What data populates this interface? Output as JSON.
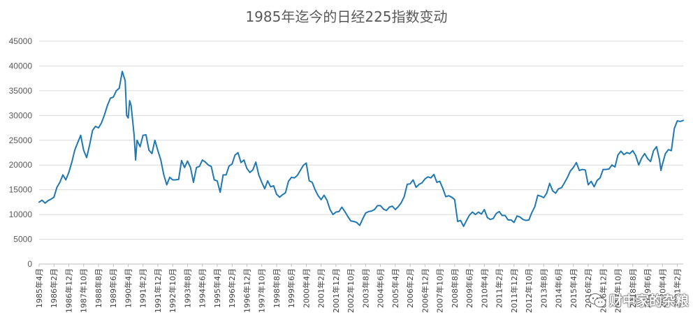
{
  "chart_data": {
    "type": "line",
    "title": "1985年迄今的日经225指数变动",
    "xlabel": "",
    "ylabel": "",
    "ylim": [
      0,
      45000
    ],
    "yticks": [
      0,
      5000,
      10000,
      15000,
      20000,
      25000,
      30000,
      35000,
      40000,
      45000
    ],
    "xlim": [
      "1985-04",
      "2021-06"
    ],
    "grid": true,
    "legend": "none",
    "x_tick_labels": [
      "1985年4月",
      "1986年2月",
      "1986年12月",
      "1987年10月",
      "1988年8月",
      "1989年6月",
      "1990年4月",
      "1991年2月",
      "1991年12月",
      "1992年10月",
      "1993年8月",
      "1994年6月",
      "1995年4月",
      "1996年2月",
      "1996年12月",
      "1997年10月",
      "1998年8月",
      "1999年6月",
      "2000年4月",
      "2001年2月",
      "2001年12月",
      "2002年10月",
      "2003年8月",
      "2004年6月",
      "2005年4月",
      "2006年2月",
      "2006年12月",
      "2007年10月",
      "2008年8月",
      "2009年6月",
      "2010年4月",
      "2011年2月",
      "2011年12月",
      "2012年10月",
      "2013年8月",
      "2014年6月",
      "2015年4月",
      "2016年2月",
      "2016年12月",
      "2017年10月",
      "2018年8月",
      "2019年6月",
      "2020年4月",
      "2021年2月"
    ],
    "series": [
      {
        "name": "",
        "color": "#1f77b4",
        "points": [
          [
            "1985-04",
            12500
          ],
          [
            "1985-06",
            12900
          ],
          [
            "1985-08",
            12300
          ],
          [
            "1985-10",
            12800
          ],
          [
            "1985-12",
            13100
          ],
          [
            "1986-02",
            13500
          ],
          [
            "1986-04",
            15500
          ],
          [
            "1986-06",
            16500
          ],
          [
            "1986-08",
            18000
          ],
          [
            "1986-10",
            17000
          ],
          [
            "1986-12",
            18500
          ],
          [
            "1987-02",
            20500
          ],
          [
            "1987-04",
            23000
          ],
          [
            "1987-06",
            24500
          ],
          [
            "1987-08",
            26000
          ],
          [
            "1987-10",
            23000
          ],
          [
            "1987-12",
            21500
          ],
          [
            "1988-02",
            24000
          ],
          [
            "1988-04",
            27000
          ],
          [
            "1988-06",
            27800
          ],
          [
            "1988-08",
            27500
          ],
          [
            "1988-10",
            28500
          ],
          [
            "1988-12",
            30100
          ],
          [
            "1989-02",
            32000
          ],
          [
            "1989-04",
            33500
          ],
          [
            "1989-06",
            33700
          ],
          [
            "1989-08",
            35000
          ],
          [
            "1989-10",
            35500
          ],
          [
            "1989-12",
            38900
          ],
          [
            "1990-02",
            37000
          ],
          [
            "1990-03",
            30000
          ],
          [
            "1990-04",
            29500
          ],
          [
            "1990-05",
            33000
          ],
          [
            "1990-06",
            32000
          ],
          [
            "1990-08",
            26000
          ],
          [
            "1990-09",
            21000
          ],
          [
            "1990-10",
            25000
          ],
          [
            "1990-12",
            23700
          ],
          [
            "1991-02",
            26000
          ],
          [
            "1991-04",
            26100
          ],
          [
            "1991-06",
            23000
          ],
          [
            "1991-08",
            22300
          ],
          [
            "1991-10",
            25000
          ],
          [
            "1991-12",
            22900
          ],
          [
            "1992-02",
            21000
          ],
          [
            "1992-04",
            18000
          ],
          [
            "1992-06",
            16000
          ],
          [
            "1992-08",
            17500
          ],
          [
            "1992-10",
            17000
          ],
          [
            "1992-12",
            17000
          ],
          [
            "1993-02",
            17100
          ],
          [
            "1993-04",
            20900
          ],
          [
            "1993-06",
            19500
          ],
          [
            "1993-08",
            20800
          ],
          [
            "1993-10",
            19500
          ],
          [
            "1993-12",
            16500
          ],
          [
            "1994-02",
            19500
          ],
          [
            "1994-04",
            19700
          ],
          [
            "1994-06",
            21000
          ],
          [
            "1994-08",
            20600
          ],
          [
            "1994-10",
            20000
          ],
          [
            "1994-12",
            19700
          ],
          [
            "1995-02",
            17000
          ],
          [
            "1995-04",
            16800
          ],
          [
            "1995-06",
            14500
          ],
          [
            "1995-08",
            18000
          ],
          [
            "1995-10",
            18000
          ],
          [
            "1995-12",
            19800
          ],
          [
            "1996-02",
            20200
          ],
          [
            "1996-04",
            22000
          ],
          [
            "1996-06",
            22500
          ],
          [
            "1996-08",
            20500
          ],
          [
            "1996-10",
            21000
          ],
          [
            "1996-12",
            19300
          ],
          [
            "1997-02",
            18500
          ],
          [
            "1997-04",
            19000
          ],
          [
            "1997-06",
            20600
          ],
          [
            "1997-08",
            18000
          ],
          [
            "1997-10",
            16500
          ],
          [
            "1997-12",
            15200
          ],
          [
            "1998-02",
            16800
          ],
          [
            "1998-04",
            15600
          ],
          [
            "1998-06",
            15800
          ],
          [
            "1998-08",
            14100
          ],
          [
            "1998-10",
            13500
          ],
          [
            "1998-12",
            14000
          ],
          [
            "1999-02",
            14400
          ],
          [
            "1999-04",
            16700
          ],
          [
            "1999-06",
            17500
          ],
          [
            "1999-08",
            17400
          ],
          [
            "1999-10",
            17900
          ],
          [
            "1999-12",
            18900
          ],
          [
            "2000-02",
            19900
          ],
          [
            "2000-04",
            20400
          ],
          [
            "2000-06",
            16800
          ],
          [
            "2000-08",
            16500
          ],
          [
            "2000-10",
            15000
          ],
          [
            "2000-12",
            13800
          ],
          [
            "2001-02",
            13000
          ],
          [
            "2001-04",
            13900
          ],
          [
            "2001-06",
            12900
          ],
          [
            "2001-08",
            11000
          ],
          [
            "2001-10",
            10000
          ],
          [
            "2001-12",
            10500
          ],
          [
            "2002-02",
            10600
          ],
          [
            "2002-04",
            11500
          ],
          [
            "2002-06",
            10600
          ],
          [
            "2002-08",
            9600
          ],
          [
            "2002-10",
            8700
          ],
          [
            "2002-12",
            8600
          ],
          [
            "2003-02",
            8400
          ],
          [
            "2003-04",
            7800
          ],
          [
            "2003-06",
            9100
          ],
          [
            "2003-08",
            10300
          ],
          [
            "2003-10",
            10600
          ],
          [
            "2003-12",
            10700
          ],
          [
            "2004-02",
            11000
          ],
          [
            "2004-04",
            11800
          ],
          [
            "2004-06",
            11800
          ],
          [
            "2004-08",
            11100
          ],
          [
            "2004-10",
            10800
          ],
          [
            "2004-12",
            11500
          ],
          [
            "2005-02",
            11700
          ],
          [
            "2005-04",
            11000
          ],
          [
            "2005-06",
            11600
          ],
          [
            "2005-08",
            12400
          ],
          [
            "2005-10",
            13600
          ],
          [
            "2005-12",
            16100
          ],
          [
            "2006-02",
            16200
          ],
          [
            "2006-04",
            17000
          ],
          [
            "2006-06",
            15500
          ],
          [
            "2006-08",
            16100
          ],
          [
            "2006-10",
            16400
          ],
          [
            "2006-12",
            17200
          ],
          [
            "2007-02",
            17600
          ],
          [
            "2007-04",
            17400
          ],
          [
            "2007-06",
            18100
          ],
          [
            "2007-08",
            16500
          ],
          [
            "2007-10",
            16700
          ],
          [
            "2007-12",
            15300
          ],
          [
            "2008-02",
            13600
          ],
          [
            "2008-04",
            13800
          ],
          [
            "2008-06",
            13500
          ],
          [
            "2008-08",
            13000
          ],
          [
            "2008-10",
            8600
          ],
          [
            "2008-12",
            8800
          ],
          [
            "2009-02",
            7600
          ],
          [
            "2009-04",
            8800
          ],
          [
            "2009-06",
            9900
          ],
          [
            "2009-08",
            10500
          ],
          [
            "2009-10",
            10000
          ],
          [
            "2009-12",
            10500
          ],
          [
            "2010-02",
            10100
          ],
          [
            "2010-04",
            11000
          ],
          [
            "2010-06",
            9400
          ],
          [
            "2010-08",
            9000
          ],
          [
            "2010-10",
            9200
          ],
          [
            "2010-12",
            10200
          ],
          [
            "2011-02",
            10600
          ],
          [
            "2011-04",
            9800
          ],
          [
            "2011-06",
            9800
          ],
          [
            "2011-08",
            8900
          ],
          [
            "2011-10",
            8900
          ],
          [
            "2011-12",
            8400
          ],
          [
            "2012-02",
            9700
          ],
          [
            "2012-04",
            9500
          ],
          [
            "2012-06",
            9000
          ],
          [
            "2012-08",
            8800
          ],
          [
            "2012-10",
            8900
          ],
          [
            "2012-12",
            10400
          ],
          [
            "2013-02",
            11600
          ],
          [
            "2013-04",
            13900
          ],
          [
            "2013-06",
            13700
          ],
          [
            "2013-08",
            13400
          ],
          [
            "2013-10",
            14300
          ],
          [
            "2013-12",
            16300
          ],
          [
            "2014-02",
            14800
          ],
          [
            "2014-04",
            14300
          ],
          [
            "2014-06",
            15200
          ],
          [
            "2014-08",
            15400
          ],
          [
            "2014-10",
            16400
          ],
          [
            "2014-12",
            17500
          ],
          [
            "2015-02",
            18800
          ],
          [
            "2015-04",
            19500
          ],
          [
            "2015-06",
            20500
          ],
          [
            "2015-08",
            18900
          ],
          [
            "2015-10",
            19100
          ],
          [
            "2015-12",
            19000
          ],
          [
            "2016-02",
            16000
          ],
          [
            "2016-04",
            16700
          ],
          [
            "2016-06",
            15600
          ],
          [
            "2016-08",
            16900
          ],
          [
            "2016-10",
            17400
          ],
          [
            "2016-12",
            19100
          ],
          [
            "2017-02",
            19100
          ],
          [
            "2017-04",
            19200
          ],
          [
            "2017-06",
            20000
          ],
          [
            "2017-08",
            19600
          ],
          [
            "2017-10",
            22000
          ],
          [
            "2017-12",
            22800
          ],
          [
            "2018-02",
            22100
          ],
          [
            "2018-04",
            22500
          ],
          [
            "2018-06",
            22300
          ],
          [
            "2018-08",
            22900
          ],
          [
            "2018-10",
            21900
          ],
          [
            "2018-12",
            20000
          ],
          [
            "2019-02",
            21400
          ],
          [
            "2019-04",
            22300
          ],
          [
            "2019-06",
            21300
          ],
          [
            "2019-08",
            20700
          ],
          [
            "2019-10",
            22900
          ],
          [
            "2019-12",
            23700
          ],
          [
            "2020-02",
            21100
          ],
          [
            "2020-03",
            18900
          ],
          [
            "2020-04",
            20200
          ],
          [
            "2020-06",
            22300
          ],
          [
            "2020-08",
            23100
          ],
          [
            "2020-10",
            22900
          ],
          [
            "2020-12",
            27400
          ],
          [
            "2021-02",
            28900
          ],
          [
            "2021-04",
            28800
          ],
          [
            "2021-06",
            29000
          ]
        ]
      }
    ]
  },
  "watermark": {
    "icon": "wechat-icon",
    "text": "财中家的杂粮"
  }
}
